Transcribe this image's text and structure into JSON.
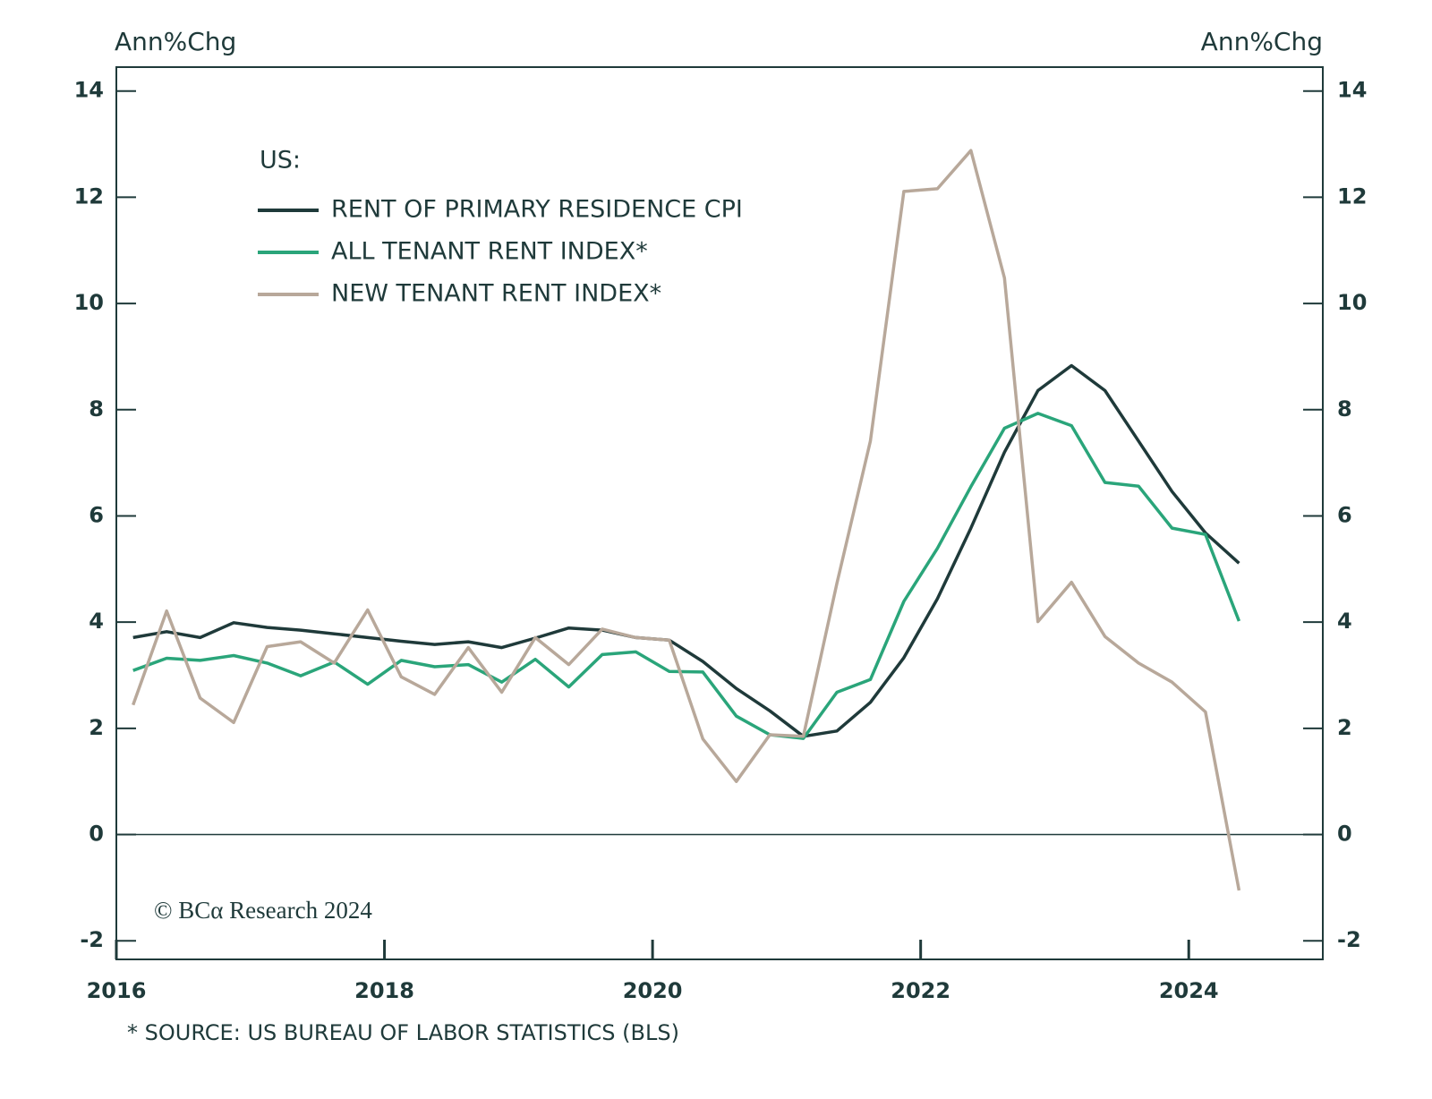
{
  "chart_data": {
    "type": "line",
    "y_label_left": "Ann%Chg",
    "y_label_right": "Ann%Chg",
    "legend_title": "US:",
    "credit": "© BCα Research 2024",
    "footnote": "* SOURCE: US BUREAU OF LABOR STATISTICS (BLS)",
    "x": [
      2016.125,
      2016.375,
      2016.625,
      2016.875,
      2017.125,
      2017.375,
      2017.625,
      2017.875,
      2018.125,
      2018.375,
      2018.625,
      2018.875,
      2019.125,
      2019.375,
      2019.625,
      2019.875,
      2020.125,
      2020.375,
      2020.625,
      2020.875,
      2021.125,
      2021.375,
      2021.625,
      2021.875,
      2022.125,
      2022.375,
      2022.625,
      2022.875,
      2023.125,
      2023.375,
      2023.625,
      2023.875,
      2024.125,
      2024.375
    ],
    "xlim": [
      2016,
      2025
    ],
    "xticks": [
      2016,
      2018,
      2020,
      2022,
      2024
    ],
    "ylim": [
      -2.35,
      14.45
    ],
    "yticks": [
      -2,
      0,
      2,
      4,
      6,
      8,
      10,
      12,
      14
    ],
    "series": [
      {
        "name": "RENT OF PRIMARY RESIDENCE CPI",
        "color": "#1f3a3a",
        "values": [
          3.71,
          3.82,
          3.71,
          3.99,
          3.9,
          3.85,
          3.78,
          3.71,
          3.64,
          3.58,
          3.63,
          3.52,
          3.7,
          3.89,
          3.85,
          3.71,
          3.66,
          3.26,
          2.75,
          2.33,
          1.85,
          1.95,
          2.49,
          3.33,
          4.44,
          5.77,
          7.2,
          8.36,
          8.83,
          8.36,
          7.41,
          6.46,
          5.68,
          5.11
        ]
      },
      {
        "name": "ALL TENANT RENT INDEX*",
        "color": "#2aa57a",
        "values": [
          3.09,
          3.32,
          3.28,
          3.37,
          3.23,
          2.99,
          3.25,
          2.83,
          3.28,
          3.16,
          3.2,
          2.87,
          3.3,
          2.78,
          3.39,
          3.44,
          3.07,
          3.06,
          2.23,
          1.88,
          1.81,
          2.68,
          2.92,
          4.39,
          5.39,
          6.55,
          7.65,
          7.93,
          7.7,
          6.63,
          6.56,
          5.77,
          5.65,
          4.02
        ]
      },
      {
        "name": "NEW TENANT RENT INDEX*",
        "color": "#b8a89a",
        "values": [
          2.44,
          4.21,
          2.57,
          2.11,
          3.54,
          3.63,
          3.23,
          4.23,
          2.97,
          2.64,
          3.52,
          2.68,
          3.71,
          3.2,
          3.87,
          3.71,
          3.66,
          1.8,
          1.0,
          1.88,
          1.85,
          4.73,
          7.41,
          12.11,
          12.16,
          12.88,
          10.48,
          4.01,
          4.75,
          3.73,
          3.23,
          2.87,
          2.31,
          -1.05
        ]
      }
    ]
  }
}
